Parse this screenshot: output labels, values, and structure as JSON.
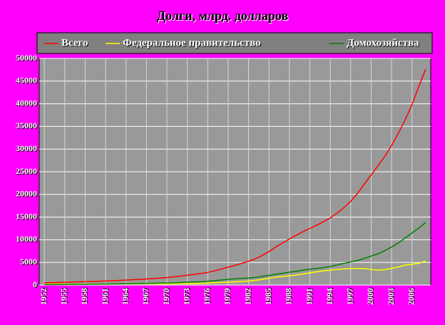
{
  "chart_data": {
    "type": "line",
    "title": "Долги, млрд. долларов",
    "x": [
      1952,
      1953,
      1954,
      1955,
      1956,
      1957,
      1958,
      1959,
      1960,
      1961,
      1962,
      1963,
      1964,
      1965,
      1966,
      1967,
      1968,
      1969,
      1970,
      1971,
      1972,
      1973,
      1974,
      1975,
      1976,
      1977,
      1978,
      1979,
      1980,
      1981,
      1982,
      1983,
      1984,
      1985,
      1986,
      1987,
      1988,
      1989,
      1990,
      1991,
      1992,
      1993,
      1994,
      1995,
      1996,
      1997,
      1998,
      1999,
      2000,
      2001,
      2002,
      2003,
      2004,
      2005,
      2006,
      2007,
      2008
    ],
    "series": [
      {
        "name": "Всего",
        "color": "#ff0000",
        "values": [
          500,
          540,
          570,
          620,
          660,
          700,
          740,
          800,
          850,
          900,
          960,
          1030,
          1100,
          1180,
          1260,
          1340,
          1440,
          1550,
          1650,
          1800,
          1980,
          2180,
          2380,
          2550,
          2800,
          3150,
          3550,
          3950,
          4350,
          4800,
          5250,
          5800,
          6550,
          7400,
          8400,
          9300,
          10200,
          11000,
          11800,
          12500,
          13200,
          14000,
          14800,
          15900,
          17100,
          18500,
          20200,
          22300,
          24300,
          26300,
          28400,
          30800,
          33500,
          36500,
          39800,
          43800,
          47600
        ]
      },
      {
        "name": "Федеральное правительство",
        "color": "#ffff00",
        "values": [
          220,
          225,
          230,
          230,
          225,
          225,
          235,
          240,
          240,
          245,
          250,
          255,
          260,
          265,
          265,
          270,
          280,
          280,
          285,
          300,
          315,
          330,
          340,
          400,
          470,
          530,
          580,
          620,
          700,
          780,
          900,
          1050,
          1250,
          1500,
          1750,
          1900,
          2050,
          2200,
          2450,
          2700,
          2950,
          3150,
          3300,
          3450,
          3550,
          3650,
          3650,
          3650,
          3450,
          3300,
          3400,
          3700,
          4000,
          4400,
          4600,
          4800,
          5300
        ]
      },
      {
        "name": "Домохозяйства",
        "color": "#008000",
        "values": [
          90,
          105,
          115,
          135,
          150,
          160,
          170,
          190,
          215,
          230,
          250,
          280,
          305,
          330,
          350,
          370,
          400,
          430,
          460,
          500,
          560,
          640,
          700,
          750,
          840,
          960,
          1120,
          1280,
          1400,
          1470,
          1550,
          1700,
          1900,
          2150,
          2400,
          2600,
          2850,
          3050,
          3300,
          3500,
          3650,
          3850,
          4100,
          4450,
          4800,
          5100,
          5450,
          5900,
          6400,
          6900,
          7600,
          8400,
          9300,
          10400,
          11500,
          12600,
          13800
        ]
      }
    ],
    "xlim": [
      1951.25,
      2008.75
    ],
    "xticks": [
      1952,
      1955,
      1958,
      1961,
      1964,
      1967,
      1970,
      1973,
      1976,
      1979,
      1982,
      1985,
      1988,
      1991,
      1994,
      1997,
      2000,
      2003,
      2006
    ],
    "ylim": [
      0,
      50000
    ],
    "yticks": [
      0,
      5000,
      10000,
      15000,
      20000,
      25000,
      30000,
      35000,
      40000,
      45000,
      50000
    ],
    "grid": true,
    "legend": "top"
  }
}
